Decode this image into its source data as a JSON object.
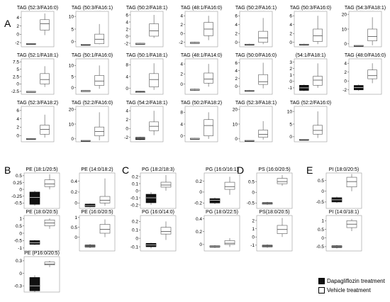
{
  "legend": {
    "dapa": "Dapagliflozin treatment",
    "vehicle": "Vehicle treatment"
  },
  "colors": {
    "dapa": "#111111",
    "vehicle": "#ffffff",
    "stroke": "#555555"
  },
  "chart_data": [
    {
      "panel": "A",
      "title": "TAG (52:3/FA16:0)",
      "type": "box",
      "yticks": [
        -2,
        0,
        2,
        4
      ],
      "ylim": [
        -3,
        5.5
      ],
      "groups": [
        {
          "name": "Dapagliflozin treatment",
          "q1": -2.4,
          "med": -2.3,
          "q3": -2.2,
          "lo": -2.5,
          "hi": -2.1
        },
        {
          "name": "Vehicle treatment",
          "q1": 1.0,
          "med": 2.5,
          "q3": 3.5,
          "lo": -0.2,
          "hi": 5.0
        }
      ]
    },
    {
      "panel": "A",
      "title": "TAG (50:3/FA16:1)",
      "type": "box",
      "yticks": [
        0,
        5,
        10
      ],
      "ylim": [
        -2,
        12
      ],
      "groups": [
        {
          "name": "Dapagliflozin treatment",
          "q1": -1.2,
          "med": -1.1,
          "q3": -1.0,
          "lo": -1.3,
          "hi": -0.9
        },
        {
          "name": "Vehicle treatment",
          "q1": -0.8,
          "med": 1.0,
          "q3": 3.0,
          "lo": -1.0,
          "hi": 7.0
        }
      ]
    },
    {
      "panel": "A",
      "title": "TAG (50:2/FA18:1)",
      "type": "box",
      "yticks": [
        -2,
        0,
        2,
        4,
        6
      ],
      "ylim": [
        -3,
        7
      ],
      "groups": [
        {
          "name": "Dapagliflozin treatment",
          "q1": -2.2,
          "med": -2.1,
          "q3": -2.0,
          "lo": -2.3,
          "hi": -1.9
        },
        {
          "name": "Vehicle treatment",
          "q1": 0.0,
          "med": 1.5,
          "q3": 3.5,
          "lo": -0.5,
          "hi": 6.0
        }
      ]
    },
    {
      "panel": "A",
      "title": "TAG (48:1/FA16:0)",
      "type": "box",
      "yticks": [
        -2,
        0,
        2,
        4
      ],
      "ylim": [
        -3,
        5
      ],
      "groups": [
        {
          "name": "Dapagliflozin treatment",
          "q1": -2.2,
          "med": -2.1,
          "q3": -2.0,
          "lo": -2.3,
          "hi": -1.9
        },
        {
          "name": "Vehicle treatment",
          "q1": -0.5,
          "med": 1.0,
          "q3": 2.5,
          "lo": -1.5,
          "hi": 4.0
        }
      ]
    },
    {
      "panel": "A",
      "title": "TAG (50:2/FA16:1)",
      "type": "box",
      "yticks": [
        0,
        2,
        4,
        6
      ],
      "ylim": [
        -1,
        7
      ],
      "groups": [
        {
          "name": "Dapagliflozin treatment",
          "q1": -0.6,
          "med": -0.5,
          "q3": -0.4,
          "lo": -0.7,
          "hi": -0.3
        },
        {
          "name": "Vehicle treatment",
          "q1": 0.0,
          "med": 1.0,
          "q3": 2.5,
          "lo": -0.4,
          "hi": 5.5
        }
      ]
    },
    {
      "panel": "A",
      "title": "TAG (50:3/FA16:0)",
      "type": "box",
      "yticks": [
        0,
        2,
        4,
        6
      ],
      "ylim": [
        -1,
        7
      ],
      "groups": [
        {
          "name": "Dapagliflozin treatment",
          "q1": -0.6,
          "med": -0.5,
          "q3": -0.4,
          "lo": -0.7,
          "hi": -0.3
        },
        {
          "name": "Vehicle treatment",
          "q1": 0.2,
          "med": 1.5,
          "q3": 3.0,
          "lo": -0.4,
          "hi": 6.0
        }
      ]
    },
    {
      "panel": "A",
      "title": "TAG (54:3/FA18:1)",
      "type": "box",
      "yticks": [
        0,
        10,
        20
      ],
      "ylim": [
        -2,
        22
      ],
      "groups": [
        {
          "name": "Dapagliflozin treatment",
          "q1": -1.2,
          "med": -1.1,
          "q3": -1.0,
          "lo": -1.3,
          "hi": -0.9
        },
        {
          "name": "Vehicle treatment",
          "q1": 2.0,
          "med": 5.0,
          "q3": 10.0,
          "lo": -1.0,
          "hi": 18.0
        }
      ]
    },
    {
      "panel": "A",
      "title": "TAG (52:1/FA18:1)",
      "type": "box",
      "yticks": [
        -2.5,
        0,
        2.5,
        5,
        7.5
      ],
      "ylim": [
        -3.5,
        8.5
      ],
      "groups": [
        {
          "name": "Dapagliflozin treatment",
          "q1": -2.7,
          "med": -2.6,
          "q3": -2.5,
          "lo": -2.8,
          "hi": -2.4
        },
        {
          "name": "Vehicle treatment",
          "q1": 0.0,
          "med": 1.5,
          "q3": 3.5,
          "lo": -1.0,
          "hi": 6.0
        }
      ]
    },
    {
      "panel": "A",
      "title": "TAG (50:1/FA16:0)",
      "type": "box",
      "yticks": [
        0,
        5,
        10
      ],
      "ylim": [
        -3,
        13
      ],
      "groups": [
        {
          "name": "Dapagliflozin treatment",
          "q1": -1.6,
          "med": -1.5,
          "q3": -1.3,
          "lo": -1.7,
          "hi": -1.2
        },
        {
          "name": "Vehicle treatment",
          "q1": 1.0,
          "med": 3.0,
          "q3": 5.5,
          "lo": -0.5,
          "hi": 10.0
        }
      ]
    },
    {
      "panel": "A",
      "title": "TAG (50:1/FA18:1)",
      "type": "box",
      "yticks": [
        0,
        4,
        8
      ],
      "ylim": [
        -2,
        10
      ],
      "groups": [
        {
          "name": "Dapagliflozin treatment",
          "q1": -1.4,
          "med": -1.3,
          "q3": -1.0,
          "lo": -1.5,
          "hi": -0.9
        },
        {
          "name": "Vehicle treatment",
          "q1": 0.5,
          "med": 3.0,
          "q3": 5.0,
          "lo": -0.5,
          "hi": 8.5
        }
      ]
    },
    {
      "panel": "A",
      "title": "TAG (48:1/FA14:0)",
      "type": "box",
      "yticks": [
        0,
        2,
        4
      ],
      "ylim": [
        -2,
        5
      ],
      "groups": [
        {
          "name": "Dapagliflozin treatment",
          "q1": -1.2,
          "med": -1.1,
          "q3": -1.0,
          "lo": -1.3,
          "hi": -0.9
        },
        {
          "name": "Vehicle treatment",
          "q1": 0.2,
          "med": 1.0,
          "q3": 2.2,
          "lo": -0.5,
          "hi": 4.0
        }
      ]
    },
    {
      "panel": "A",
      "title": "TAG (50:0/FA16:0)",
      "type": "box",
      "yticks": [
        0,
        2,
        4,
        6
      ],
      "ylim": [
        -2,
        7
      ],
      "groups": [
        {
          "name": "Dapagliflozin treatment",
          "q1": -1.2,
          "med": -1.1,
          "q3": -1.0,
          "lo": -1.3,
          "hi": -0.9
        },
        {
          "name": "Vehicle treatment",
          "q1": 0.5,
          "med": 1.2,
          "q3": 3.0,
          "lo": -0.5,
          "hi": 6.0
        }
      ]
    },
    {
      "panel": "A",
      "title": "(54:1/FA18:1)",
      "type": "box",
      "yticks": [
        -1,
        0,
        1,
        2,
        3
      ],
      "ylim": [
        -2,
        3.5
      ],
      "groups": [
        {
          "name": "Dapagliflozin treatment",
          "q1": -1.4,
          "med": -1.0,
          "q3": -0.6,
          "lo": -1.5,
          "hi": -0.5
        },
        {
          "name": "Vehicle treatment",
          "q1": -0.6,
          "med": 0.2,
          "q3": 0.8,
          "lo": -1.0,
          "hi": 2.8
        }
      ]
    },
    {
      "panel": "A",
      "title": "TAG (48:0/FA16:0)",
      "type": "box",
      "yticks": [
        -2,
        0,
        2,
        4
      ],
      "ylim": [
        -3,
        5
      ],
      "groups": [
        {
          "name": "Dapagliflozin treatment",
          "q1": -2.0,
          "med": -1.5,
          "q3": -1.0,
          "lo": -2.2,
          "hi": -0.8
        },
        {
          "name": "Vehicle treatment",
          "q1": 0.5,
          "med": 1.2,
          "q3": 2.5,
          "lo": -0.5,
          "hi": 4.0
        }
      ]
    },
    {
      "panel": "A",
      "title": "TAG (52:3/FA18:2)",
      "type": "box",
      "yticks": [
        0,
        2,
        4,
        6
      ],
      "ylim": [
        -1.5,
        7
      ],
      "groups": [
        {
          "name": "Dapagliflozin treatment",
          "q1": -0.9,
          "med": -0.8,
          "q3": -0.7,
          "lo": -1.0,
          "hi": -0.6
        },
        {
          "name": "Vehicle treatment",
          "q1": 0.3,
          "med": 1.5,
          "q3": 2.5,
          "lo": -0.5,
          "hi": 5.0
        }
      ]
    },
    {
      "panel": "A",
      "title": "TAG (52:2/FA16:0)",
      "type": "box",
      "yticks": [
        0,
        10,
        20
      ],
      "ylim": [
        -2,
        22
      ],
      "groups": [
        {
          "name": "Dapagliflozin treatment",
          "q1": -1.2,
          "med": -1.1,
          "q3": -1.0,
          "lo": -1.3,
          "hi": -0.9
        },
        {
          "name": "Vehicle treatment",
          "q1": 2.0,
          "med": 5.0,
          "q3": 8.0,
          "lo": -1.0,
          "hi": 18.0
        }
      ]
    },
    {
      "panel": "A",
      "title": "TAG (54:2/FA18:1)",
      "type": "box",
      "yticks": [
        -2,
        0,
        2,
        4
      ],
      "ylim": [
        -3,
        5
      ],
      "groups": [
        {
          "name": "Dapagliflozin treatment",
          "q1": -2.5,
          "med": -2.2,
          "q3": -2.0,
          "lo": -2.6,
          "hi": -1.9
        },
        {
          "name": "Vehicle treatment",
          "q1": -0.5,
          "med": 0.5,
          "q3": 1.5,
          "lo": -1.5,
          "hi": 4.0
        }
      ]
    },
    {
      "panel": "A",
      "title": "TAG (50:2/FA18:2)",
      "type": "box",
      "yticks": [
        0,
        4,
        8
      ],
      "ylim": [
        -2,
        10
      ],
      "groups": [
        {
          "name": "Dapagliflozin treatment",
          "q1": -1.0,
          "med": -0.9,
          "q3": -0.8,
          "lo": -1.1,
          "hi": -0.7
        },
        {
          "name": "Vehicle treatment",
          "q1": 0.0,
          "med": 3.5,
          "q3": 5.5,
          "lo": -1.0,
          "hi": 8.0
        }
      ]
    },
    {
      "panel": "A",
      "title": "TAG (52:3/FA18:1)",
      "type": "box",
      "yticks": [
        0,
        10,
        20
      ],
      "ylim": [
        -2,
        22
      ],
      "groups": [
        {
          "name": "Dapagliflozin treatment",
          "q1": -1.2,
          "med": -1.1,
          "q3": -1.0,
          "lo": -1.3,
          "hi": -0.9
        },
        {
          "name": "Vehicle treatment",
          "q1": 1.0,
          "med": 3.0,
          "q3": 6.0,
          "lo": -0.5,
          "hi": 12.0
        }
      ]
    },
    {
      "panel": "A",
      "title": "TAG (52:2/FA16:0)",
      "type": "box",
      "yticks": [
        0,
        5,
        10
      ],
      "ylim": [
        -2,
        12
      ],
      "groups": [
        {
          "name": "Dapagliflozin treatment",
          "q1": -1.2,
          "med": -1.1,
          "q3": -1.0,
          "lo": -1.3,
          "hi": -0.9
        },
        {
          "name": "Vehicle treatment",
          "q1": 1.0,
          "med": 2.5,
          "q3": 4.5,
          "lo": -0.5,
          "hi": 10.0
        }
      ]
    },
    {
      "panel": "B",
      "title": "PE (18:1/20:5)",
      "type": "box",
      "yticks": [
        -0.5,
        -0.25,
        0,
        0.25,
        0.5
      ],
      "ylim": [
        -0.7,
        0.6
      ],
      "groups": [
        {
          "name": "Dapagliflozin treatment",
          "q1": -0.55,
          "med": -0.3,
          "q3": -0.1,
          "lo": -0.6,
          "hi": -0.05
        },
        {
          "name": "Vehicle treatment",
          "q1": 0.1,
          "med": 0.2,
          "q3": 0.35,
          "lo": 0.0,
          "hi": 0.55
        }
      ]
    },
    {
      "panel": "B",
      "title": "PE (14:0/18:2)",
      "type": "box",
      "yticks": [
        0,
        0.2,
        0.4
      ],
      "ylim": [
        -0.1,
        0.55
      ],
      "groups": [
        {
          "name": "Dapagliflozin treatment",
          "q1": -0.07,
          "med": -0.05,
          "q3": -0.02,
          "lo": -0.08,
          "hi": -0.01
        },
        {
          "name": "Vehicle treatment",
          "q1": 0.0,
          "med": 0.05,
          "q3": 0.12,
          "lo": -0.05,
          "hi": 0.45
        }
      ]
    },
    {
      "panel": "B",
      "title": "PE (18:0/20:5)",
      "type": "box",
      "yticks": [
        -1,
        -0.5,
        0,
        0.5,
        1
      ],
      "ylim": [
        -1.2,
        1.2
      ],
      "groups": [
        {
          "name": "Dapagliflozin treatment",
          "q1": -0.75,
          "med": -0.65,
          "q3": -0.5,
          "lo": -0.8,
          "hi": -0.45
        },
        {
          "name": "Vehicle treatment",
          "q1": 0.5,
          "med": 0.7,
          "q3": 0.9,
          "lo": 0.3,
          "hi": 1.0
        }
      ]
    },
    {
      "panel": "B",
      "title": "PE (16:0/20:5)",
      "type": "box",
      "yticks": [
        0,
        0.5,
        1
      ],
      "ylim": [
        -0.7,
        1.1
      ],
      "groups": [
        {
          "name": "Dapagliflozin treatment",
          "q1": -0.5,
          "med": -0.45,
          "q3": -0.4,
          "lo": -0.55,
          "hi": -0.35
        },
        {
          "name": "Vehicle treatment",
          "q1": 0.2,
          "med": 0.4,
          "q3": 0.65,
          "lo": 0.0,
          "hi": 0.9
        }
      ]
    },
    {
      "panel": "B",
      "title": "PE (P16:0/20:5)",
      "type": "box",
      "yticks": [
        -0.3,
        0,
        0.3
      ],
      "ylim": [
        -0.45,
        0.4
      ],
      "groups": [
        {
          "name": "Dapagliflozin treatment",
          "q1": -0.42,
          "med": -0.3,
          "q3": -0.1,
          "lo": -0.45,
          "hi": -0.05
        },
        {
          "name": "Vehicle treatment",
          "q1": 0.2,
          "med": 0.22,
          "q3": 0.27,
          "lo": 0.15,
          "hi": 0.3
        }
      ]
    },
    {
      "panel": "C",
      "title": "PG (18:2/18:3)",
      "type": "box",
      "yticks": [
        -0.2,
        -0.1,
        0,
        0.1,
        0.2
      ],
      "ylim": [
        -0.25,
        0.25
      ],
      "groups": [
        {
          "name": "Dapagliflozin treatment",
          "q1": -0.17,
          "med": -0.1,
          "q3": -0.05,
          "lo": -0.2,
          "hi": -0.02
        },
        {
          "name": "Vehicle treatment",
          "q1": 0.05,
          "med": 0.08,
          "q3": 0.12,
          "lo": 0.0,
          "hi": 0.22
        }
      ]
    },
    {
      "panel": "C",
      "title": "PG (16:0/16:1)",
      "type": "box",
      "yticks": [
        -0.2,
        0,
        0.2
      ],
      "ylim": [
        -0.3,
        0.35
      ],
      "groups": [
        {
          "name": "Dapagliflozin treatment",
          "q1": -0.2,
          "med": -0.15,
          "q3": -0.12,
          "lo": -0.22,
          "hi": -0.1
        },
        {
          "name": "Vehicle treatment",
          "q1": 0.05,
          "med": 0.1,
          "q3": 0.18,
          "lo": -0.05,
          "hi": 0.28
        }
      ]
    },
    {
      "panel": "C",
      "title": "PG (16:0/14:0)",
      "type": "box",
      "yticks": [
        -0.1,
        0,
        0.1,
        0.2
      ],
      "ylim": [
        -0.15,
        0.27
      ],
      "groups": [
        {
          "name": "Dapagliflozin treatment",
          "q1": -0.1,
          "med": -0.08,
          "q3": -0.06,
          "lo": -0.12,
          "hi": -0.05
        },
        {
          "name": "Vehicle treatment",
          "q1": 0.05,
          "med": 0.08,
          "q3": 0.13,
          "lo": -0.02,
          "hi": 0.2
        }
      ]
    },
    {
      "panel": "C",
      "title": "PG (18:0/22:5)",
      "type": "box",
      "yticks": [
        0,
        0.2,
        0.4
      ],
      "ylim": [
        -0.1,
        0.45
      ],
      "groups": [
        {
          "name": "Dapagliflozin treatment",
          "q1": -0.04,
          "med": -0.03,
          "q3": -0.02,
          "lo": -0.05,
          "hi": -0.01
        },
        {
          "name": "Vehicle treatment",
          "q1": 0.0,
          "med": 0.02,
          "q3": 0.06,
          "lo": -0.04,
          "hi": 0.1
        }
      ]
    },
    {
      "panel": "D",
      "title": "PS (16:0/20:5)",
      "type": "box",
      "yticks": [
        -0.5,
        0,
        0.5
      ],
      "ylim": [
        -0.75,
        0.9
      ],
      "groups": [
        {
          "name": "Dapagliflozin treatment",
          "q1": -0.55,
          "med": -0.52,
          "q3": -0.48,
          "lo": -0.58,
          "hi": -0.45
        },
        {
          "name": "Vehicle treatment",
          "q1": 0.4,
          "med": 0.5,
          "q3": 0.65,
          "lo": 0.3,
          "hi": 0.8
        }
      ]
    },
    {
      "panel": "D",
      "title": "PS(18:0/20:5)",
      "type": "box",
      "yticks": [
        -1,
        0,
        1,
        2
      ],
      "ylim": [
        -1.7,
        2.6
      ],
      "groups": [
        {
          "name": "Dapagliflozin treatment",
          "q1": -1.2,
          "med": -1.1,
          "q3": -1.0,
          "lo": -1.3,
          "hi": -0.9
        },
        {
          "name": "Vehicle treatment",
          "q1": 0.4,
          "med": 0.9,
          "q3": 1.4,
          "lo": 0.0,
          "hi": 2.3
        }
      ]
    },
    {
      "panel": "E",
      "title": "PI (18:0/20:5)",
      "type": "box",
      "yticks": [
        -0.5,
        0,
        0.5
      ],
      "ylim": [
        -0.8,
        0.85
      ],
      "groups": [
        {
          "name": "Dapagliflozin treatment",
          "q1": -0.5,
          "med": -0.4,
          "q3": -0.3,
          "lo": -0.55,
          "hi": -0.25
        },
        {
          "name": "Vehicle treatment",
          "q1": 0.2,
          "med": 0.45,
          "q3": 0.65,
          "lo": 0.0,
          "hi": 0.8
        }
      ]
    },
    {
      "panel": "E",
      "title": "PI (14:0/18:1)",
      "type": "box",
      "yticks": [
        -0.5,
        0,
        0.5,
        1
      ],
      "ylim": [
        -0.75,
        1.3
      ],
      "groups": [
        {
          "name": "Dapagliflozin treatment",
          "q1": -0.55,
          "med": -0.5,
          "q3": -0.45,
          "lo": -0.6,
          "hi": -0.4
        },
        {
          "name": "Vehicle treatment",
          "q1": 0.6,
          "med": 0.8,
          "q3": 1.0,
          "lo": 0.4,
          "hi": 1.1
        }
      ]
    }
  ]
}
